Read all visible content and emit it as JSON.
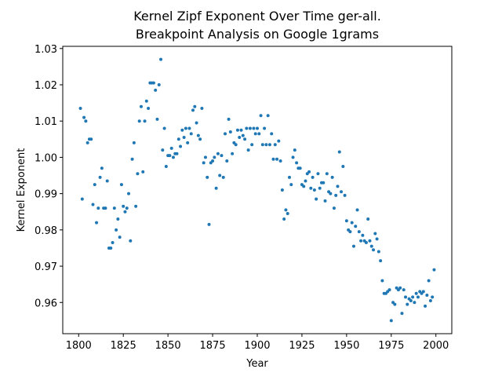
{
  "chart_data": {
    "type": "scatter",
    "title": [
      "Kernel Zipf Exponent Over Time ger-all.",
      "Breakpoint Analysis on Google 1grams"
    ],
    "xlabel": "Year",
    "ylabel": "Kernel Exponent",
    "color": "#1f77b4",
    "x": [
      1801,
      1802,
      1803,
      1804,
      1805,
      1806,
      1807,
      1808,
      1809,
      1810,
      1811,
      1812,
      1813,
      1814,
      1815,
      1816,
      1817,
      1818,
      1819,
      1820,
      1821,
      1822,
      1823,
      1824,
      1825,
      1826,
      1827,
      1828,
      1829,
      1830,
      1831,
      1832,
      1833,
      1834,
      1835,
      1836,
      1837,
      1838,
      1839,
      1840,
      1841,
      1842,
      1843,
      1844,
      1845,
      1846,
      1847,
      1848,
      1849,
      1850,
      1851,
      1852,
      1853,
      1854,
      1855,
      1856,
      1857,
      1858,
      1859,
      1860,
      1861,
      1862,
      1863,
      1864,
      1865,
      1866,
      1867,
      1868,
      1869,
      1870,
      1871,
      1872,
      1873,
      1874,
      1875,
      1876,
      1877,
      1878,
      1879,
      1880,
      1881,
      1882,
      1883,
      1884,
      1885,
      1886,
      1887,
      1888,
      1889,
      1890,
      1891,
      1892,
      1893,
      1894,
      1895,
      1896,
      1897,
      1898,
      1899,
      1900,
      1901,
      1902,
      1903,
      1904,
      1905,
      1906,
      1907,
      1908,
      1909,
      1910,
      1911,
      1912,
      1913,
      1914,
      1915,
      1916,
      1917,
      1918,
      1919,
      1920,
      1921,
      1922,
      1923,
      1924,
      1925,
      1926,
      1927,
      1928,
      1929,
      1930,
      1931,
      1932,
      1933,
      1934,
      1935,
      1936,
      1937,
      1938,
      1939,
      1940,
      1941,
      1942,
      1943,
      1944,
      1945,
      1946,
      1947,
      1948,
      1949,
      1950,
      1951,
      1952,
      1953,
      1954,
      1955,
      1956,
      1957,
      1958,
      1959,
      1960,
      1961,
      1962,
      1963,
      1964,
      1965,
      1966,
      1967,
      1968,
      1969,
      1970,
      1971,
      1972,
      1973,
      1974,
      1975,
      1976,
      1977,
      1978,
      1979,
      1980,
      1981,
      1982,
      1983,
      1984,
      1985,
      1986,
      1987,
      1988,
      1989,
      1990,
      1991,
      1992,
      1993,
      1994,
      1995,
      1996,
      1997,
      1998,
      1999
    ],
    "values": [
      1.0135,
      0.9885,
      1.011,
      1.01,
      1.004,
      1.005,
      1.005,
      0.987,
      0.9925,
      0.982,
      0.986,
      0.9945,
      0.997,
      0.986,
      0.986,
      0.9935,
      0.975,
      0.975,
      0.9765,
      0.986,
      0.98,
      0.983,
      0.978,
      0.9925,
      0.9865,
      0.985,
      0.986,
      0.99,
      0.977,
      0.9995,
      1.004,
      0.9865,
      0.9955,
      1.01,
      1.014,
      0.996,
      1.01,
      1.0155,
      1.0135,
      1.0205,
      1.0205,
      1.0205,
      1.0185,
      1.0105,
      1.02,
      1.027,
      1.002,
      1.008,
      0.9975,
      1.0005,
      1.0005,
      1.0025,
      1.0,
      1.001,
      1.001,
      1.005,
      1.003,
      1.0075,
      1.0055,
      1.008,
      1.004,
      1.008,
      1.0065,
      1.013,
      1.014,
      1.0095,
      1.006,
      1.005,
      1.0135,
      0.9985,
      1.0,
      0.9945,
      0.9815,
      0.9985,
      0.999,
      1.0,
      0.9915,
      1.001,
      0.995,
      1.0005,
      0.9945,
      1.0065,
      0.999,
      1.0105,
      1.007,
      1.001,
      1.004,
      1.0035,
      1.0075,
      1.0055,
      1.0075,
      1.006,
      1.005,
      1.008,
      1.002,
      1.008,
      1.0035,
      1.008,
      1.0065,
      1.008,
      1.0065,
      1.0115,
      1.0035,
      1.008,
      1.0035,
      1.0115,
      1.0035,
      1.0065,
      0.9995,
      1.0035,
      0.9995,
      1.0045,
      0.999,
      0.991,
      0.983,
      0.9855,
      0.9845,
      0.9945,
      0.9925,
      1.0,
      1.002,
      0.9985,
      0.997,
      0.997,
      0.9925,
      0.992,
      0.9935,
      0.9955,
      0.996,
      0.9915,
      0.9945,
      0.991,
      0.9885,
      0.9955,
      0.9915,
      0.993,
      0.993,
      0.988,
      0.9955,
      0.9905,
      0.99,
      0.9945,
      0.986,
      0.9895,
      0.992,
      1.0015,
      0.9905,
      0.9975,
      0.9895,
      0.9825,
      0.98,
      0.9795,
      0.982,
      0.9755,
      0.981,
      0.9855,
      0.9795,
      0.977,
      0.9785,
      0.977,
      0.9765,
      0.983,
      0.977,
      0.9755,
      0.9745,
      0.979,
      0.9775,
      0.974,
      0.9715,
      0.966,
      0.9625,
      0.9625,
      0.963,
      0.9635,
      0.955,
      0.96,
      0.9595,
      0.964,
      0.9635,
      0.964,
      0.957,
      0.9635,
      0.9615,
      0.9595,
      0.961,
      0.9605,
      0.9615,
      0.96,
      0.9625,
      0.9615,
      0.963,
      0.9625,
      0.963,
      0.959,
      0.962,
      0.966,
      0.9605,
      0.9615,
      0.969
    ],
    "xlim": [
      1791.1,
      2008.9
    ],
    "ylim": [
      0.9514,
      1.0306
    ],
    "xticks": [
      1800,
      1825,
      1850,
      1875,
      1900,
      1925,
      1950,
      1975,
      2000
    ],
    "yticks": [
      0.96,
      0.97,
      0.98,
      0.99,
      {
        "value": 1,
        "label": "1.00"
      },
      1.01,
      1.02,
      1.03
    ]
  }
}
